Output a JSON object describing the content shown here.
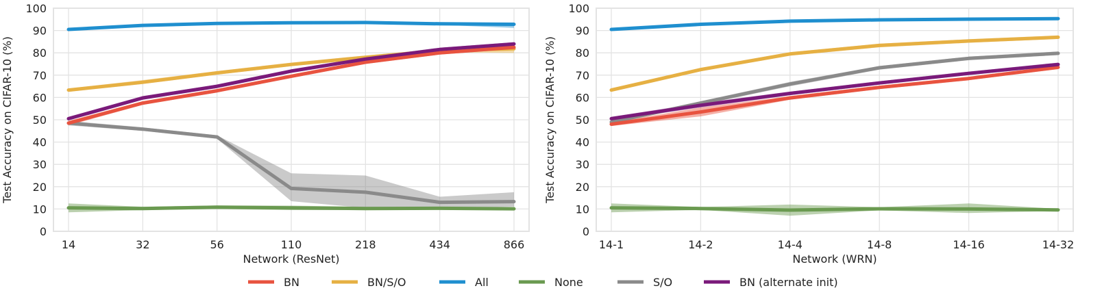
{
  "colors": {
    "BN": "#e8533f",
    "BN/S/O": "#e6b043",
    "All": "#1f8fcf",
    "None": "#6a9a50",
    "S/O": "#8a8a8a",
    "BN (alternate init)": "#7a1a7a",
    "grid": "#e3e3e3",
    "frame": "#e3e3e3"
  },
  "legend": {
    "placement": "bottom-center",
    "entries": [
      "BN",
      "BN/S/O",
      "All",
      "None",
      "S/O",
      "BN (alternate init)"
    ]
  },
  "chart_data": [
    {
      "type": "line",
      "title": "",
      "xlabel": "Network (ResNet)",
      "ylabel": "Test Accuracy on CIFAR-10 (%)",
      "categories": [
        "14",
        "32",
        "56",
        "110",
        "218",
        "434",
        "866"
      ],
      "ylim": [
        0,
        100
      ],
      "yticks": [
        0,
        10,
        20,
        30,
        40,
        50,
        60,
        70,
        80,
        90,
        100
      ],
      "grid": true,
      "series": [
        {
          "name": "None",
          "values": [
            10.5,
            10.2,
            10.8,
            10.5,
            10.2,
            10.3,
            10.1
          ],
          "lower": [
            8.5,
            9.5,
            10.0,
            9.5,
            9.5,
            9.8,
            9.6
          ],
          "upper": [
            12.5,
            11.0,
            11.6,
            11.5,
            11.0,
            10.8,
            10.6
          ]
        },
        {
          "name": "S/O",
          "values": [
            48.5,
            45.8,
            42.3,
            19.2,
            17.5,
            13.0,
            13.3
          ],
          "lower": [
            47.5,
            45.0,
            41.5,
            13.5,
            10.5,
            10.5,
            11.0
          ],
          "upper": [
            49.5,
            46.6,
            43.0,
            26.0,
            25.0,
            15.5,
            17.5
          ]
        },
        {
          "name": "BN/S/O",
          "values": [
            63.3,
            66.8,
            71.0,
            74.8,
            78.0,
            81.0,
            81.8
          ],
          "lower": [
            62.5,
            66.0,
            70.2,
            74.0,
            77.2,
            80.2,
            80.0
          ],
          "upper": [
            64.0,
            67.8,
            71.8,
            75.6,
            78.8,
            81.8,
            83.5
          ]
        },
        {
          "name": "BN",
          "values": [
            48.5,
            57.5,
            63.0,
            69.5,
            75.8,
            80.0,
            82.5
          ],
          "lower": [
            47.5,
            56.7,
            62.2,
            68.7,
            75.0,
            79.2,
            81.7
          ],
          "upper": [
            49.5,
            58.3,
            63.8,
            70.3,
            76.6,
            80.8,
            83.3
          ]
        },
        {
          "name": "BN (alternate init)",
          "values": [
            50.5,
            59.8,
            65.0,
            71.8,
            77.2,
            81.5,
            84.0
          ],
          "lower": [
            49.7,
            59.0,
            64.2,
            71.0,
            76.4,
            80.7,
            83.2
          ],
          "upper": [
            51.3,
            60.6,
            65.8,
            72.6,
            78.0,
            82.3,
            84.8
          ]
        },
        {
          "name": "All",
          "values": [
            90.5,
            92.3,
            93.2,
            93.5,
            93.6,
            93.0,
            92.8
          ],
          "lower": [
            90.0,
            91.8,
            92.7,
            93.0,
            93.1,
            92.5,
            91.2
          ],
          "upper": [
            91.0,
            92.8,
            93.7,
            94.0,
            94.1,
            93.5,
            93.6
          ]
        }
      ]
    },
    {
      "type": "line",
      "title": "",
      "xlabel": "Network (WRN)",
      "ylabel": "Test Accuracy on CIFAR-10 (%)",
      "categories": [
        "14-1",
        "14-2",
        "14-4",
        "14-8",
        "14-16",
        "14-32"
      ],
      "ylim": [
        0,
        100
      ],
      "yticks": [
        0,
        10,
        20,
        30,
        40,
        50,
        60,
        70,
        80,
        90,
        100
      ],
      "grid": true,
      "series": [
        {
          "name": "None",
          "values": [
            10.5,
            10.2,
            9.5,
            10.1,
            10.0,
            9.6
          ],
          "lower": [
            8.5,
            9.6,
            7.0,
            9.4,
            8.2,
            9.1
          ],
          "upper": [
            12.5,
            10.9,
            12.0,
            10.8,
            12.5,
            10.1
          ]
        },
        {
          "name": "S/O",
          "values": [
            49.0,
            57.5,
            66.0,
            73.3,
            77.5,
            79.8
          ],
          "lower": [
            48.2,
            56.7,
            65.0,
            72.5,
            76.7,
            79.0
          ],
          "upper": [
            49.8,
            58.3,
            67.0,
            74.1,
            78.3,
            80.6
          ]
        },
        {
          "name": "BN/S/O",
          "values": [
            63.3,
            72.5,
            79.5,
            83.3,
            85.3,
            87.0
          ],
          "lower": [
            62.5,
            71.7,
            78.7,
            82.5,
            84.5,
            86.2
          ],
          "upper": [
            64.1,
            73.3,
            80.3,
            84.1,
            86.1,
            87.8
          ]
        },
        {
          "name": "BN",
          "values": [
            48.0,
            53.5,
            59.8,
            64.5,
            68.5,
            73.5
          ],
          "lower": [
            47.2,
            51.5,
            59.0,
            63.7,
            67.7,
            72.7
          ],
          "upper": [
            48.8,
            55.5,
            60.6,
            65.3,
            69.3,
            74.3
          ]
        },
        {
          "name": "BN (alternate init)",
          "values": [
            50.5,
            56.5,
            61.8,
            66.5,
            70.8,
            74.8
          ],
          "lower": [
            49.7,
            55.5,
            61.0,
            65.7,
            70.0,
            74.0
          ],
          "upper": [
            51.3,
            57.5,
            62.6,
            67.3,
            71.6,
            75.6
          ]
        },
        {
          "name": "All",
          "values": [
            90.5,
            92.8,
            94.2,
            94.8,
            95.1,
            95.3
          ],
          "lower": [
            90.0,
            92.3,
            93.7,
            94.3,
            94.6,
            94.8
          ],
          "upper": [
            91.0,
            93.3,
            94.7,
            95.3,
            95.6,
            95.8
          ]
        }
      ]
    }
  ]
}
